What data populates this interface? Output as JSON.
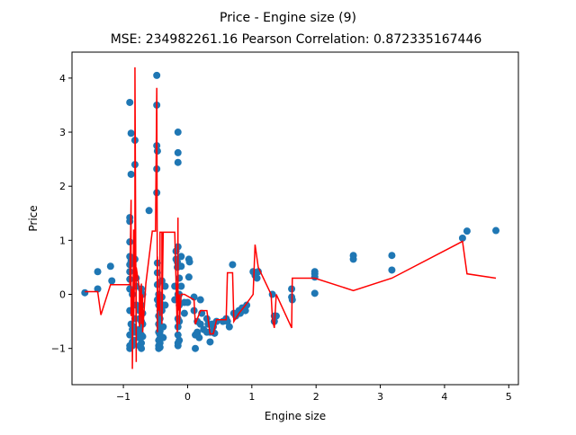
{
  "chart_data": {
    "type": "scatter",
    "title": "Price - Engine size (9)",
    "subtitle": "MSE: 234982261.16 Pearson Correlation: 0.872335167446",
    "xlabel": "Engine size",
    "ylabel": "Price",
    "xlim": [
      -1.8,
      5.15
    ],
    "ylim": [
      -1.67,
      4.48
    ],
    "xticks": [
      -1,
      0,
      1,
      2,
      3,
      4,
      5
    ],
    "yticks": [
      -1,
      0,
      1,
      2,
      3,
      4
    ],
    "grid": false,
    "colors": {
      "points": "#1f77b4",
      "line": "#ff0000",
      "axes": "#000000"
    },
    "series": [
      {
        "kind": "points",
        "x": [
          -1.6,
          -1.4,
          -1.4,
          -1.2,
          -1.18,
          -0.9,
          -0.9,
          -0.9,
          -0.9,
          -0.9,
          -0.9,
          -0.9,
          -0.9,
          -0.9,
          -0.9,
          -0.9,
          -0.9,
          -0.9,
          -0.88,
          -0.88,
          -0.88,
          -0.88,
          -0.86,
          -0.86,
          -0.86,
          -0.86,
          -0.84,
          -0.84,
          -0.84,
          -0.82,
          -0.82,
          -0.82,
          -0.82,
          -0.8,
          -0.8,
          -0.8,
          -0.8,
          -0.75,
          -0.75,
          -0.75,
          -0.75,
          -0.75,
          -0.72,
          -0.72,
          -0.72,
          -0.72,
          -0.72,
          -0.72,
          -0.7,
          -0.7,
          -0.7,
          -0.7,
          -0.6,
          -0.48,
          -0.48,
          -0.48,
          -0.48,
          -0.48,
          -0.47,
          -0.47,
          -0.47,
          -0.47,
          -0.47,
          -0.45,
          -0.45,
          -0.45,
          -0.45,
          -0.45,
          -0.45,
          -0.45,
          -0.45,
          -0.43,
          -0.43,
          -0.43,
          -0.43,
          -0.43,
          -0.43,
          -0.43,
          -0.43,
          -0.43,
          -0.4,
          -0.4,
          -0.4,
          -0.38,
          -0.38,
          -0.35,
          -0.35,
          -0.2,
          -0.2,
          -0.18,
          -0.18,
          -0.16,
          -0.16,
          -0.15,
          -0.15,
          -0.15,
          -0.15,
          -0.15,
          -0.15,
          -0.15,
          -0.15,
          -0.15,
          -0.15,
          -0.15,
          -0.13,
          -0.13,
          -0.13,
          -0.13,
          -0.13,
          -0.1,
          -0.1,
          -0.1,
          -0.05,
          -0.05,
          0.0,
          0.02,
          0.02,
          0.03,
          0.1,
          0.1,
          0.12,
          0.12,
          0.15,
          0.15,
          0.15,
          0.15,
          0.18,
          0.2,
          0.2,
          0.22,
          0.25,
          0.3,
          0.3,
          0.32,
          0.35,
          0.35,
          0.38,
          0.4,
          0.42,
          0.45,
          0.55,
          0.6,
          0.62,
          0.65,
          0.7,
          0.72,
          0.75,
          0.8,
          0.82,
          0.85,
          0.9,
          0.92,
          1.02,
          1.05,
          1.08,
          1.1,
          1.32,
          1.35,
          1.38,
          1.35,
          1.62,
          1.62,
          1.63,
          1.98,
          1.98,
          1.98,
          1.98,
          2.58,
          2.58,
          3.18,
          3.18,
          4.28,
          4.35,
          4.8
        ],
        "y": [
          0.03,
          0.42,
          0.1,
          0.52,
          0.25,
          3.55,
          1.42,
          1.35,
          0.97,
          0.7,
          0.55,
          0.42,
          0.28,
          0.1,
          -0.3,
          -0.75,
          -0.95,
          -1.0,
          2.98,
          2.22,
          0.62,
          -0.55,
          0.0,
          -0.65,
          -0.88,
          -0.95,
          -0.6,
          -0.85,
          -0.7,
          2.85,
          2.4,
          0.65,
          -0.45,
          0.3,
          0.15,
          -0.2,
          -0.7,
          -0.3,
          -0.45,
          -0.65,
          -0.8,
          -0.95,
          0.1,
          -0.2,
          -0.5,
          -0.75,
          -0.9,
          -1.0,
          0.0,
          -0.35,
          -0.55,
          -0.78,
          1.55,
          4.05,
          3.5,
          2.75,
          2.32,
          1.88,
          2.65,
          0.58,
          0.4,
          0.18,
          -0.1,
          0.0,
          -0.2,
          -0.4,
          -0.55,
          -0.7,
          -0.85,
          -0.95,
          -1.0,
          -0.45,
          -0.6,
          -0.75,
          -0.9,
          -0.3,
          -0.15,
          -0.68,
          -0.82,
          -0.98,
          0.25,
          -0.05,
          -0.3,
          -0.6,
          -0.8,
          0.15,
          -0.2,
          0.15,
          -0.1,
          0.8,
          0.65,
          0.6,
          0.5,
          3.0,
          2.62,
          2.44,
          0.88,
          0.0,
          -0.1,
          -0.45,
          -0.6,
          -0.75,
          -0.9,
          -0.95,
          0.3,
          0.0,
          -0.2,
          -0.5,
          -0.85,
          0.7,
          0.52,
          0.15,
          -0.15,
          -0.35,
          -0.15,
          0.65,
          0.32,
          0.6,
          -0.05,
          -0.3,
          -0.75,
          -1.0,
          -0.5,
          -0.7,
          -0.72,
          -0.75,
          -0.8,
          -0.55,
          -0.1,
          -0.35,
          -0.65,
          -0.45,
          -0.7,
          -0.55,
          -0.88,
          -0.7,
          -0.55,
          -0.6,
          -0.72,
          -0.5,
          -0.5,
          -0.45,
          -0.5,
          -0.6,
          0.55,
          -0.35,
          -0.4,
          -0.3,
          -0.35,
          -0.25,
          -0.3,
          -0.2,
          0.42,
          0.35,
          0.3,
          0.42,
          0.0,
          -0.4,
          -0.4,
          -0.5,
          0.1,
          -0.05,
          -0.1,
          0.42,
          0.38,
          0.32,
          0.02,
          0.72,
          0.65,
          0.72,
          0.45,
          1.04,
          1.17,
          1.18
        ]
      },
      {
        "kind": "line",
        "x": [
          -1.6,
          -1.4,
          -1.35,
          -1.2,
          -0.9,
          -0.88,
          -0.88,
          -0.86,
          -0.86,
          -0.84,
          -0.84,
          -0.82,
          -0.82,
          -0.8,
          -0.8,
          -0.75,
          -0.75,
          -0.72,
          -0.72,
          -0.7,
          -0.7,
          -0.65,
          -0.55,
          -0.5,
          -0.48,
          -0.47,
          -0.47,
          -0.45,
          -0.45,
          -0.43,
          -0.43,
          -0.4,
          -0.4,
          -0.38,
          -0.35,
          -0.3,
          -0.2,
          -0.16,
          -0.15,
          -0.15,
          -0.13,
          -0.13,
          -0.1,
          -0.05,
          0.1,
          0.12,
          0.2,
          0.3,
          0.35,
          0.4,
          0.45,
          0.6,
          0.62,
          0.7,
          0.72,
          0.8,
          0.9,
          1.02,
          1.05,
          1.1,
          1.3,
          1.32,
          1.35,
          1.38,
          1.62,
          1.63,
          1.98,
          2.58,
          3.18,
          4.28,
          4.35,
          4.8
        ],
        "y": [
          0.05,
          0.05,
          -0.38,
          0.18,
          0.18,
          1.75,
          -0.4,
          0.1,
          -1.38,
          1.2,
          -0.5,
          0.8,
          4.2,
          -1.25,
          0.5,
          0.1,
          -0.6,
          0.2,
          -0.55,
          0.0,
          -0.7,
          0.2,
          1.17,
          1.17,
          3.82,
          -0.7,
          0.7,
          -0.3,
          0.0,
          -0.4,
          1.15,
          1.15,
          -0.55,
          1.15,
          1.15,
          1.15,
          1.15,
          -0.7,
          1.42,
          -0.3,
          0.0,
          -0.55,
          0.0,
          0.0,
          -0.1,
          -0.55,
          -0.3,
          -0.3,
          -0.73,
          -0.73,
          -0.47,
          -0.47,
          0.4,
          0.4,
          -0.5,
          -0.35,
          -0.2,
          0.0,
          0.92,
          0.5,
          0.0,
          -0.45,
          -0.62,
          0.0,
          -0.62,
          0.3,
          0.3,
          0.07,
          0.3,
          0.98,
          0.38,
          0.3
        ]
      }
    ]
  }
}
